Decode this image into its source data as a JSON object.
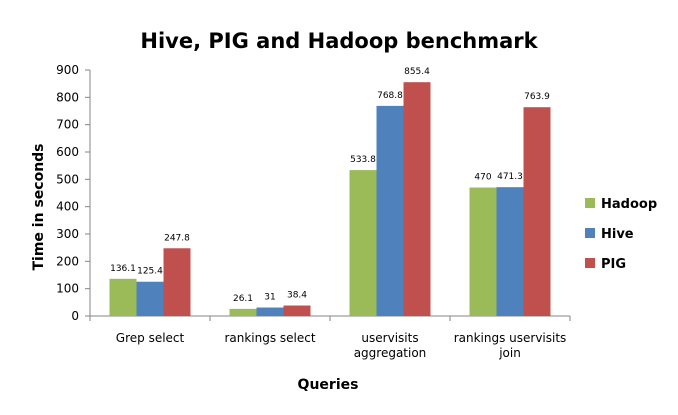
{
  "chart_data": {
    "type": "bar",
    "title": "Hive, PIG and Hadoop benchmark",
    "xlabel": "Queries",
    "ylabel": "Time in seconds",
    "ylim": [
      0,
      900
    ],
    "yticks": [
      0,
      100,
      200,
      300,
      400,
      500,
      600,
      700,
      800,
      900
    ],
    "categories": [
      [
        "Grep select"
      ],
      [
        "rankings select"
      ],
      [
        "uservisits",
        "aggregation"
      ],
      [
        "rankings uservisits",
        "join"
      ]
    ],
    "series": [
      {
        "name": "Hadoop",
        "color": "#9BBB59",
        "values": [
          136.1,
          26.1,
          533.8,
          470
        ]
      },
      {
        "name": "Hive",
        "color": "#4F81BD",
        "values": [
          125.4,
          31,
          768.8,
          471.3
        ]
      },
      {
        "name": "PIG",
        "color": "#C0504D",
        "values": [
          247.8,
          38.4,
          855.4,
          763.9
        ]
      }
    ],
    "legend_position": "right",
    "grid": false
  }
}
